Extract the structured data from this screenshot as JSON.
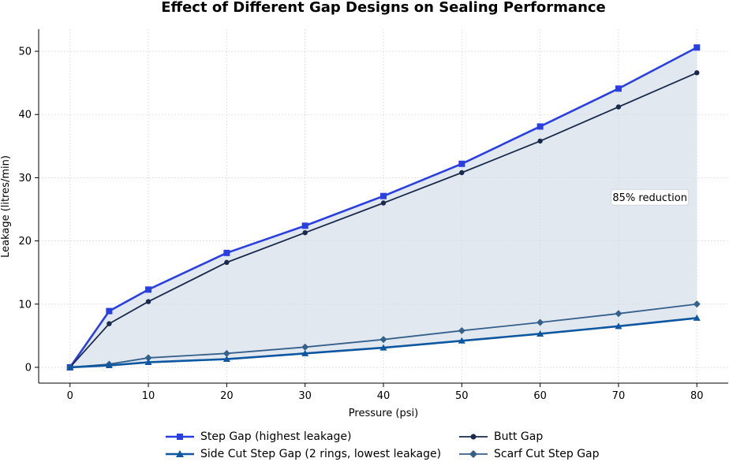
{
  "chart_data": {
    "type": "line",
    "title": "Effect of Different Gap Designs on Sealing Performance",
    "xlabel": "Pressure (psi)",
    "ylabel": "Leakage (litres/min)",
    "xlim": [
      -4,
      84
    ],
    "ylim": [
      -2.5,
      53.5
    ],
    "xticks": [
      0,
      10,
      20,
      30,
      40,
      50,
      60,
      70,
      80
    ],
    "yticks": [
      0,
      10,
      20,
      30,
      40,
      50
    ],
    "grid": true,
    "legend_position": "bottom",
    "x": [
      0,
      5,
      10,
      20,
      30,
      40,
      50,
      60,
      70,
      80
    ],
    "series": [
      {
        "name": "Step Gap (highest leakage)",
        "values": [
          0,
          8.9,
          12.3,
          18.1,
          22.4,
          27.1,
          32.2,
          38.1,
          44.1,
          50.6
        ],
        "color": "#2a3fe0",
        "marker": "square",
        "line_width": 2.6
      },
      {
        "name": "Side Cut Step Gap (2 rings, lowest leakage)",
        "values": [
          0,
          0.3,
          0.8,
          1.3,
          2.2,
          3.1,
          4.2,
          5.3,
          6.5,
          7.8
        ],
        "color": "#0d57a0",
        "marker": "triangle",
        "line_width": 2.6
      },
      {
        "name": "Butt Gap",
        "values": [
          0,
          6.9,
          10.4,
          16.6,
          21.3,
          26.0,
          30.8,
          35.8,
          41.2,
          46.6
        ],
        "color": "#1a2a4c",
        "marker": "circle",
        "line_width": 1.8
      },
      {
        "name": "Scarf Cut Step Gap",
        "values": [
          0,
          0.5,
          1.5,
          2.2,
          3.2,
          4.4,
          5.8,
          7.1,
          8.5,
          10.0
        ],
        "color": "#35608c",
        "marker": "diamond",
        "line_width": 1.8
      }
    ],
    "fill_between": {
      "upper": "Step Gap (highest leakage)",
      "lower": "Side Cut Step Gap (2 rings, lowest leakage)",
      "color": "#d3dbe6"
    },
    "annotation": {
      "text": "85% reduction",
      "x": 74,
      "y": 26.9
    }
  }
}
